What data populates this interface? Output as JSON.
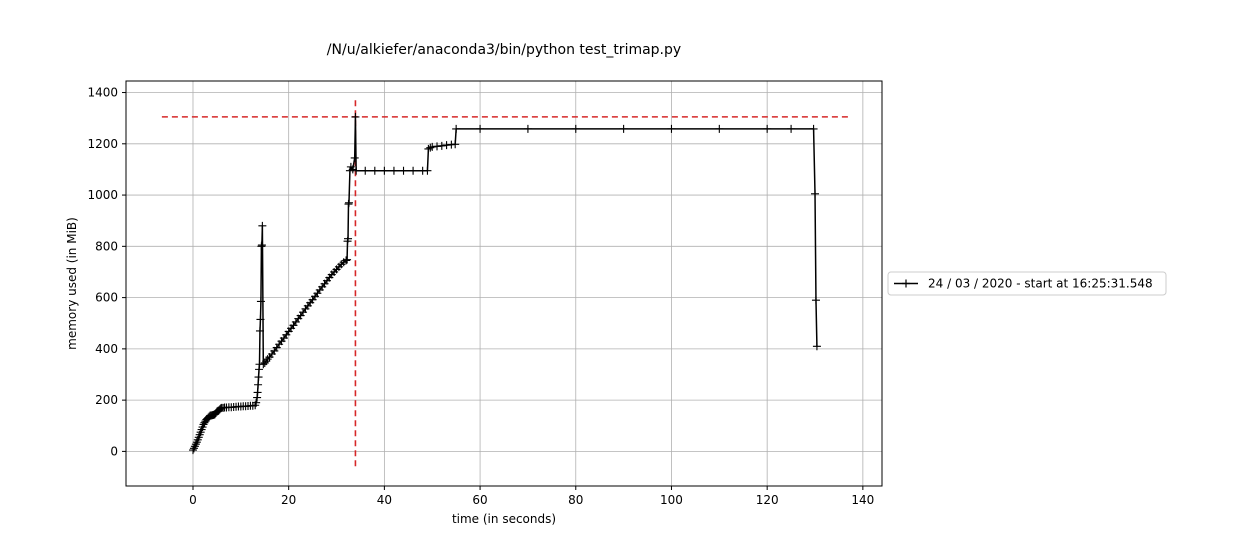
{
  "chart_data": {
    "type": "line",
    "title": "/N/u/alkiefer/anaconda3/bin/python test_trimap.py",
    "xlabel": "time (in seconds)",
    "ylabel": "memory used (in MiB)",
    "xlim": [
      -14,
      144
    ],
    "ylim": [
      -135,
      1445
    ],
    "xticks": [
      0,
      20,
      40,
      60,
      80,
      100,
      120,
      140
    ],
    "yticks": [
      0,
      200,
      400,
      600,
      800,
      1000,
      1200,
      1400
    ],
    "grid": true,
    "legend_position": "right",
    "series": [
      {
        "name": "24 / 03 / 2020 - start at 16:25:31.548",
        "color": "#000000",
        "marker": "+",
        "points": [
          [
            0,
            5
          ],
          [
            0.2,
            12
          ],
          [
            0.4,
            20
          ],
          [
            0.6,
            28
          ],
          [
            0.8,
            36
          ],
          [
            1.0,
            45
          ],
          [
            1.2,
            55
          ],
          [
            1.4,
            65
          ],
          [
            1.6,
            75
          ],
          [
            1.8,
            85
          ],
          [
            2.0,
            95
          ],
          [
            2.2,
            105
          ],
          [
            2.4,
            112
          ],
          [
            2.6,
            118
          ],
          [
            2.8,
            124
          ],
          [
            3.0,
            128
          ],
          [
            3.2,
            132
          ],
          [
            3.4,
            136
          ],
          [
            3.6,
            140
          ],
          [
            3.8,
            140
          ],
          [
            4.0,
            141
          ],
          [
            4.2,
            142
          ],
          [
            4.4,
            143
          ],
          [
            4.6,
            145
          ],
          [
            4.8,
            150
          ],
          [
            5.0,
            155
          ],
          [
            5.2,
            158
          ],
          [
            5.4,
            160
          ],
          [
            5.6,
            164
          ],
          [
            5.8,
            168
          ],
          [
            6.0,
            170
          ],
          [
            6.3,
            170
          ],
          [
            6.6,
            171
          ],
          [
            7.0,
            171
          ],
          [
            7.5,
            172
          ],
          [
            8.0,
            172
          ],
          [
            8.5,
            173
          ],
          [
            9.0,
            174
          ],
          [
            9.5,
            175
          ],
          [
            10.0,
            175
          ],
          [
            10.5,
            176
          ],
          [
            11.0,
            176
          ],
          [
            11.5,
            177
          ],
          [
            12.0,
            178
          ],
          [
            12.5,
            178
          ],
          [
            13.0,
            180
          ],
          [
            13.2,
            190
          ],
          [
            13.4,
            210
          ],
          [
            13.5,
            230
          ],
          [
            13.6,
            260
          ],
          [
            13.7,
            290
          ],
          [
            13.8,
            320
          ],
          [
            13.9,
            340
          ],
          [
            14.0,
            470
          ],
          [
            14.1,
            515
          ],
          [
            14.2,
            585
          ],
          [
            14.3,
            800
          ],
          [
            14.4,
            805
          ],
          [
            14.5,
            880
          ],
          [
            14.7,
            340
          ],
          [
            15.0,
            345
          ],
          [
            15.3,
            352
          ],
          [
            15.6,
            360
          ],
          [
            16.0,
            368
          ],
          [
            16.5,
            380
          ],
          [
            17.0,
            392
          ],
          [
            17.5,
            405
          ],
          [
            18.0,
            418
          ],
          [
            18.5,
            430
          ],
          [
            19.0,
            442
          ],
          [
            19.5,
            455
          ],
          [
            20.0,
            468
          ],
          [
            20.5,
            480
          ],
          [
            21.0,
            492
          ],
          [
            21.5,
            505
          ],
          [
            22.0,
            518
          ],
          [
            22.5,
            530
          ],
          [
            23.0,
            543
          ],
          [
            23.5,
            556
          ],
          [
            24.0,
            568
          ],
          [
            24.5,
            580
          ],
          [
            25.0,
            592
          ],
          [
            25.5,
            605
          ],
          [
            26.0,
            617
          ],
          [
            26.5,
            630
          ],
          [
            27.0,
            642
          ],
          [
            27.5,
            654
          ],
          [
            28.0,
            666
          ],
          [
            28.5,
            678
          ],
          [
            29.0,
            690
          ],
          [
            29.5,
            700
          ],
          [
            30.0,
            710
          ],
          [
            30.5,
            720
          ],
          [
            31.0,
            730
          ],
          [
            31.5,
            738
          ],
          [
            32.0,
            745
          ],
          [
            32.2,
            748
          ],
          [
            32.3,
            820
          ],
          [
            32.4,
            830
          ],
          [
            32.5,
            965
          ],
          [
            32.6,
            970
          ],
          [
            32.8,
            1095
          ],
          [
            33.0,
            1110
          ],
          [
            33.4,
            1100
          ],
          [
            33.8,
            1145
          ],
          [
            33.95,
            1305
          ],
          [
            34.1,
            1095
          ],
          [
            36,
            1095
          ],
          [
            38,
            1095
          ],
          [
            40,
            1095
          ],
          [
            42,
            1095
          ],
          [
            44,
            1095
          ],
          [
            46,
            1095
          ],
          [
            48,
            1095
          ],
          [
            49,
            1095
          ],
          [
            49.2,
            1180
          ],
          [
            49.6,
            1185
          ],
          [
            50,
            1188
          ],
          [
            51,
            1190
          ],
          [
            52,
            1192
          ],
          [
            53,
            1195
          ],
          [
            54,
            1197
          ],
          [
            54.8,
            1198
          ],
          [
            55,
            1258
          ],
          [
            60,
            1258
          ],
          [
            70,
            1258
          ],
          [
            80,
            1258
          ],
          [
            90,
            1258
          ],
          [
            100,
            1258
          ],
          [
            110,
            1258
          ],
          [
            120,
            1258
          ],
          [
            125,
            1258
          ],
          [
            129.7,
            1258
          ],
          [
            130.0,
            1005
          ],
          [
            130.2,
            590
          ],
          [
            130.4,
            410
          ]
        ]
      }
    ],
    "annotations": {
      "max_memory_hline": {
        "y": 1305,
        "x_range": [
          -6.5,
          137
        ],
        "color": "#d62728",
        "style": "dashed"
      },
      "max_memory_vline": {
        "x": 33.95,
        "y_range": [
          -65,
          1370
        ],
        "color": "#d62728",
        "style": "dashed"
      }
    }
  }
}
